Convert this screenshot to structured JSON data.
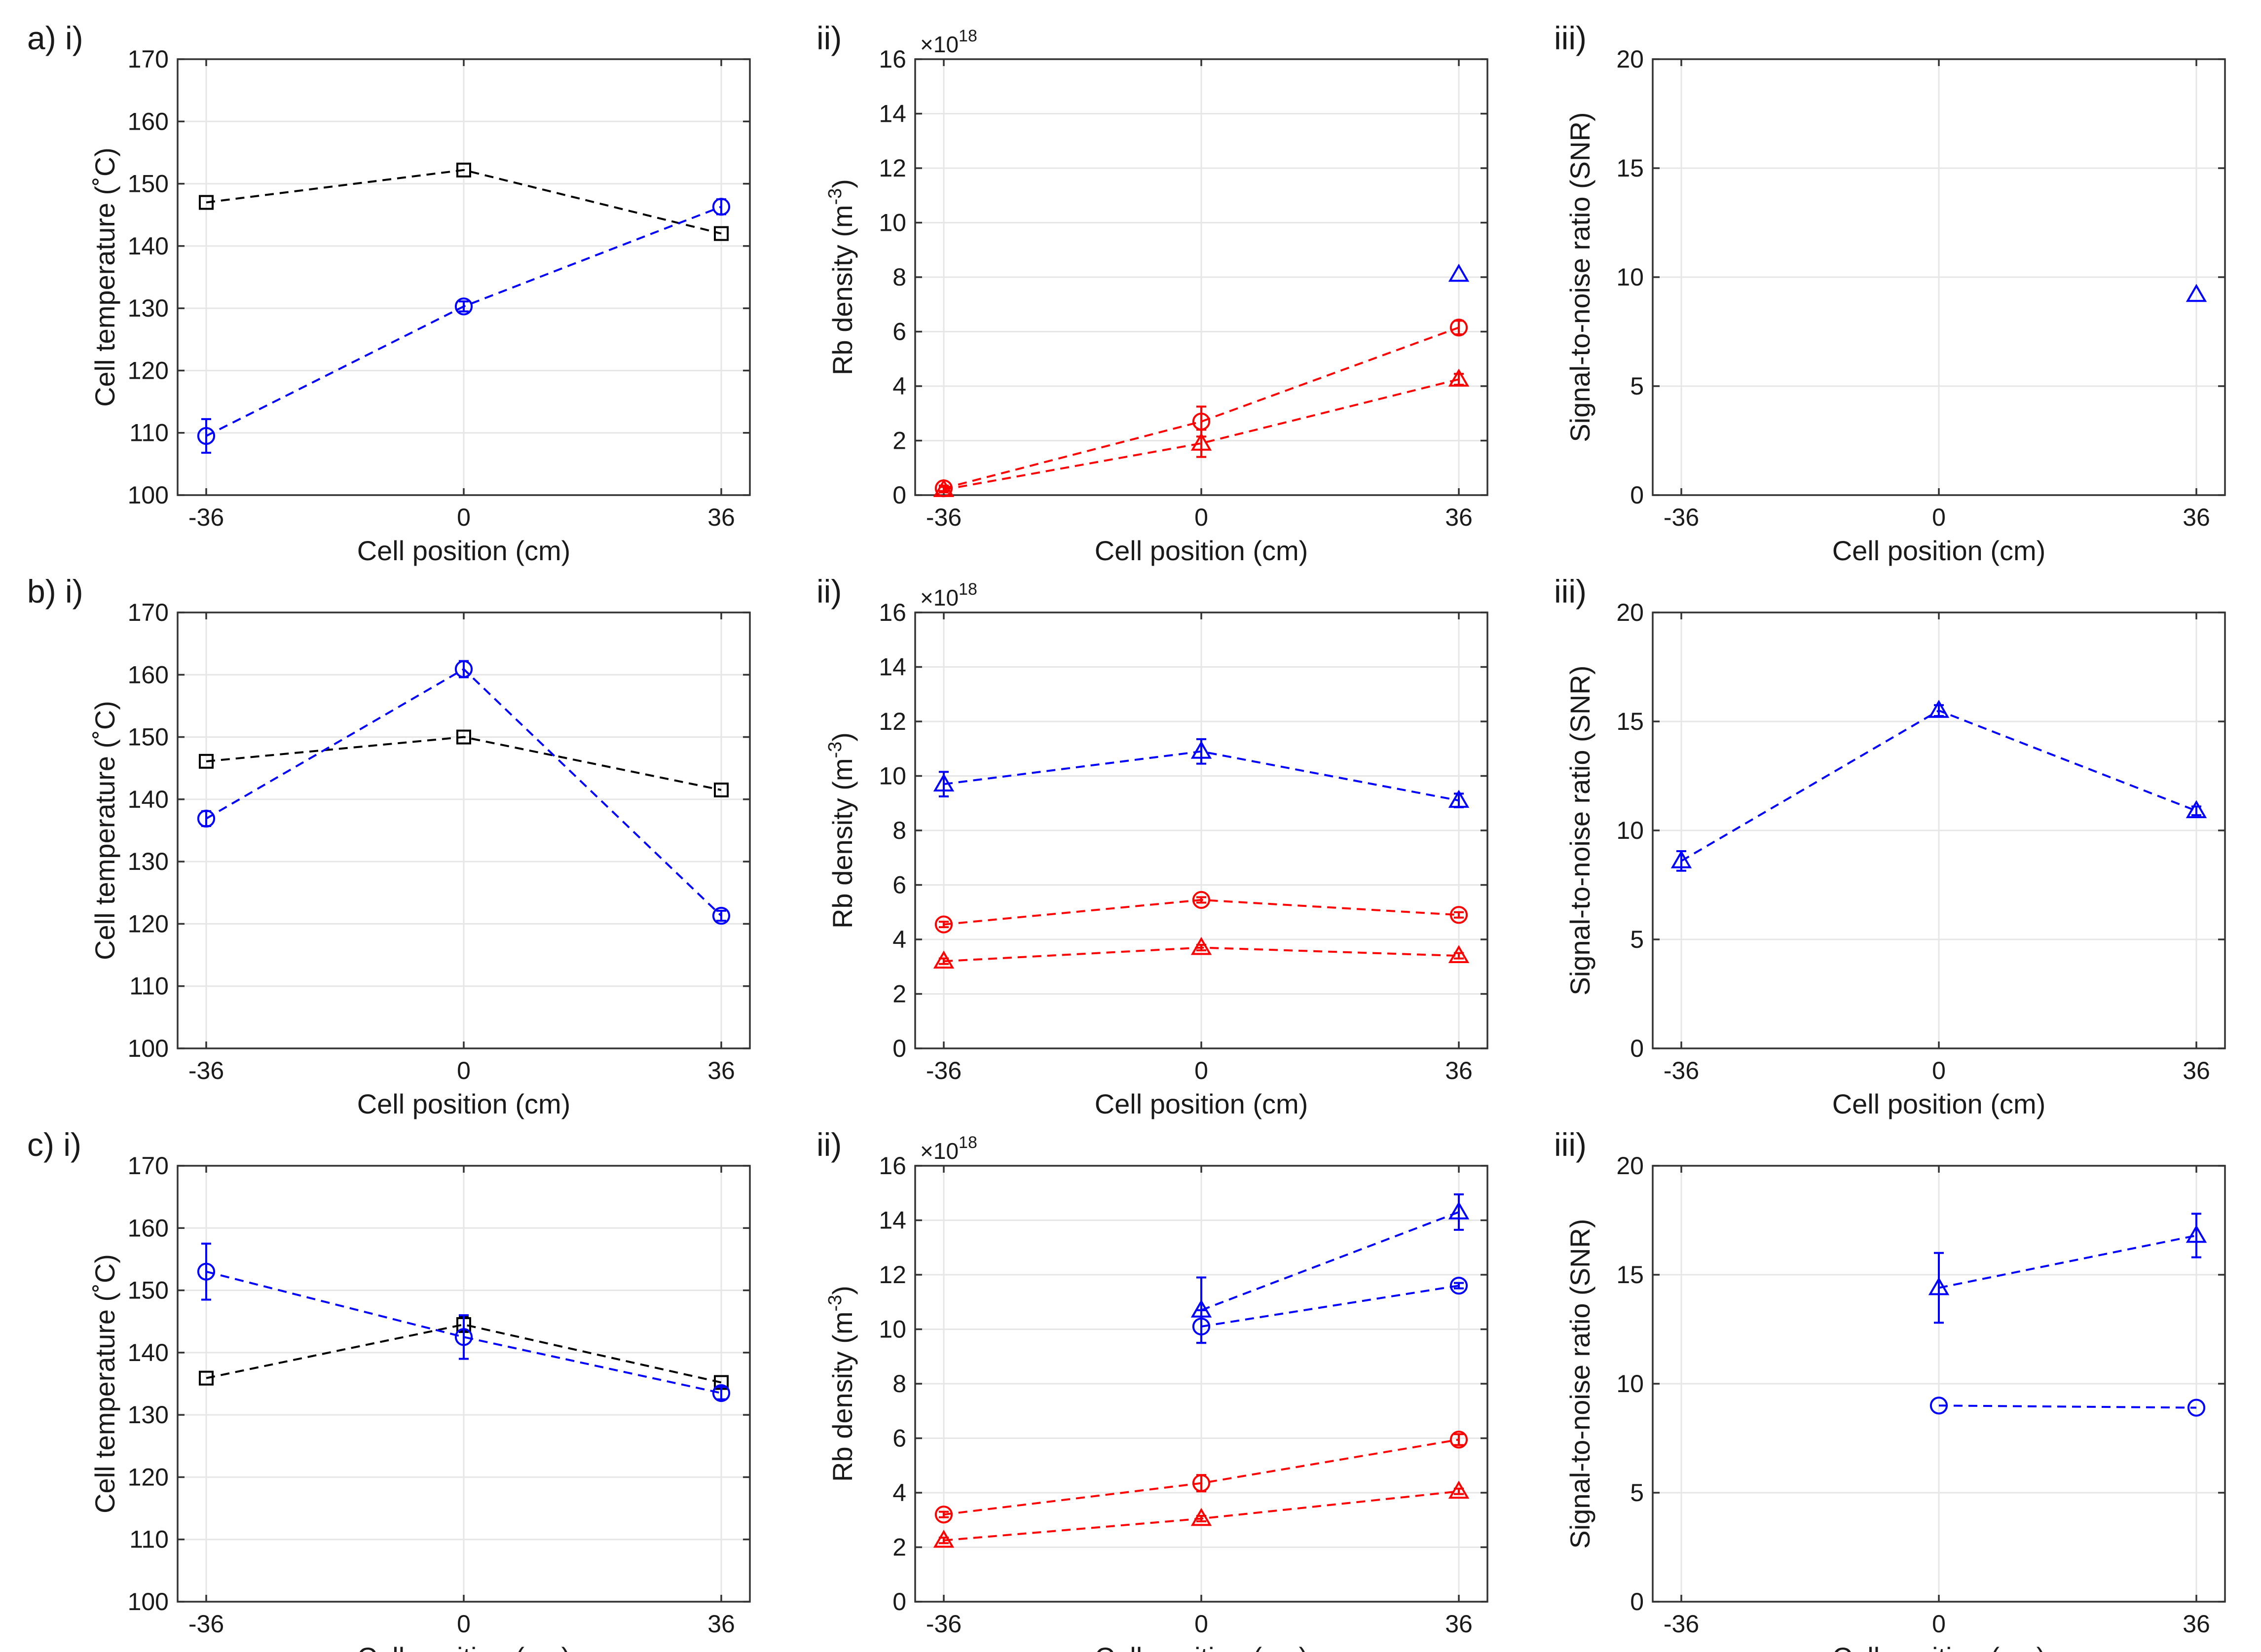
{
  "figure": {
    "colors": {
      "blue": "#0000ff",
      "red": "#ff0000",
      "black": "#000000"
    },
    "rows": [
      {
        "row_label": "a) i)",
        "panels": [
          {
            "panel_label": "",
            "type": "line",
            "xlabel": "Cell position (cm)",
            "ylabel": "Cell temperature (˚C)",
            "ylabel_sup": "",
            "multiplier_base": "",
            "multiplier_exp": "",
            "xticks": [
              -36,
              0,
              36
            ],
            "xlim": [
              -40,
              40
            ],
            "yticks": [
              100,
              110,
              120,
              130,
              140,
              150,
              160,
              170
            ],
            "ylim": [
              100,
              170
            ],
            "series": [
              {
                "name": "black-square",
                "color": "black",
                "marker": "square",
                "x": [
                  -36,
                  0,
                  36
                ],
                "y": [
                  147,
                  152.2,
                  142
                ],
                "err": [
                  0,
                  0,
                  0
                ]
              },
              {
                "name": "blue-circle",
                "color": "blue",
                "marker": "circle",
                "x": [
                  -36,
                  0,
                  36
                ],
                "y": [
                  109.5,
                  130.3,
                  146.3
                ],
                "err": [
                  2.7,
                  0.8,
                  1.2
                ]
              }
            ]
          },
          {
            "panel_label": "ii)",
            "type": "line",
            "xlabel": "Cell position (cm)",
            "ylabel": "Rb density (m",
            "ylabel_sup": "-3",
            "multiplier_base": "×10",
            "multiplier_exp": "18",
            "xticks": [
              -36,
              0,
              36
            ],
            "xlim": [
              -40,
              40
            ],
            "yticks": [
              0,
              2,
              4,
              6,
              8,
              10,
              12,
              14,
              16
            ],
            "ylim": [
              0,
              16
            ],
            "series": [
              {
                "name": "blue-triangle",
                "color": "blue",
                "marker": "triangle",
                "x": [
                  36
                ],
                "y": [
                  8.1
                ],
                "err": [
                  0
                ]
              },
              {
                "name": "red-circle",
                "color": "red",
                "marker": "circle",
                "x": [
                  -36,
                  0,
                  36
                ],
                "y": [
                  0.25,
                  2.7,
                  6.15
                ],
                "err": [
                  0.1,
                  0.55,
                  0.25
                ]
              },
              {
                "name": "red-triangle",
                "color": "red",
                "marker": "triangle",
                "x": [
                  -36,
                  0,
                  36
                ],
                "y": [
                  0.2,
                  1.9,
                  4.25
                ],
                "err": [
                  0.1,
                  0.5,
                  0.2
                ]
              }
            ]
          },
          {
            "panel_label": "iii)",
            "type": "line",
            "xlabel": "Cell position (cm)",
            "ylabel": "Signal-to-noise ratio (SNR)",
            "ylabel_sup": "",
            "multiplier_base": "",
            "multiplier_exp": "",
            "xticks": [
              -36,
              0,
              36
            ],
            "xlim": [
              -40,
              40
            ],
            "yticks": [
              0,
              5,
              10,
              15,
              20
            ],
            "ylim": [
              0,
              20
            ],
            "series": [
              {
                "name": "blue-triangle",
                "color": "blue",
                "marker": "triangle",
                "x": [
                  36
                ],
                "y": [
                  9.2
                ],
                "err": [
                  0
                ]
              }
            ]
          }
        ]
      },
      {
        "row_label": "b) i)",
        "panels": [
          {
            "panel_label": "",
            "type": "line",
            "xlabel": "Cell position (cm)",
            "ylabel": "Cell temperature (˚C)",
            "ylabel_sup": "",
            "multiplier_base": "",
            "multiplier_exp": "",
            "xticks": [
              -36,
              0,
              36
            ],
            "xlim": [
              -40,
              40
            ],
            "yticks": [
              100,
              110,
              120,
              130,
              140,
              150,
              160,
              170
            ],
            "ylim": [
              100,
              170
            ],
            "series": [
              {
                "name": "black-square",
                "color": "black",
                "marker": "square",
                "x": [
                  -36,
                  0,
                  36
                ],
                "y": [
                  146.1,
                  150,
                  141.5
                ],
                "err": [
                  0,
                  0,
                  0
                ]
              },
              {
                "name": "blue-circle",
                "color": "blue",
                "marker": "circle",
                "x": [
                  -36,
                  0,
                  36
                ],
                "y": [
                  136.9,
                  160.9,
                  121.3
                ],
                "err": [
                  1.2,
                  1.3,
                  0.8
                ]
              }
            ]
          },
          {
            "panel_label": "ii)",
            "type": "line",
            "xlabel": "Cell position (cm)",
            "ylabel": "Rb density (m",
            "ylabel_sup": "-3",
            "multiplier_base": "×10",
            "multiplier_exp": "18",
            "xticks": [
              -36,
              0,
              36
            ],
            "xlim": [
              -40,
              40
            ],
            "yticks": [
              0,
              2,
              4,
              6,
              8,
              10,
              12,
              14,
              16
            ],
            "ylim": [
              0,
              16
            ],
            "series": [
              {
                "name": "blue-triangle",
                "color": "blue",
                "marker": "triangle",
                "x": [
                  -36,
                  0,
                  36
                ],
                "y": [
                  9.7,
                  10.9,
                  9.1
                ],
                "err": [
                  0.45,
                  0.45,
                  0.25
                ]
              },
              {
                "name": "red-circle",
                "color": "red",
                "marker": "circle",
                "x": [
                  -36,
                  0,
                  36
                ],
                "y": [
                  4.55,
                  5.45,
                  4.9
                ],
                "err": [
                  0.1,
                  0.1,
                  0.1
                ]
              },
              {
                "name": "red-triangle",
                "color": "red",
                "marker": "triangle",
                "x": [
                  -36,
                  0,
                  36
                ],
                "y": [
                  3.2,
                  3.7,
                  3.4
                ],
                "err": [
                  0.1,
                  0.1,
                  0.1
                ]
              }
            ]
          },
          {
            "panel_label": "iii)",
            "type": "line",
            "xlabel": "Cell position (cm)",
            "ylabel": "Signal-to-noise ratio (SNR)",
            "ylabel_sup": "",
            "multiplier_base": "",
            "multiplier_exp": "",
            "xticks": [
              -36,
              0,
              36
            ],
            "xlim": [
              -40,
              40
            ],
            "yticks": [
              0,
              5,
              10,
              15,
              20
            ],
            "ylim": [
              0,
              20
            ],
            "series": [
              {
                "name": "blue-triangle",
                "color": "blue",
                "marker": "triangle",
                "x": [
                  -36,
                  0,
                  36
                ],
                "y": [
                  8.6,
                  15.5,
                  10.9
                ],
                "err": [
                  0.45,
                  0.25,
                  0.2
                ]
              }
            ]
          }
        ]
      },
      {
        "row_label": "c) i)",
        "panels": [
          {
            "panel_label": "",
            "type": "line",
            "xlabel": "Cell position (cm)",
            "ylabel": "Cell temperature (˚C)",
            "ylabel_sup": "",
            "multiplier_base": "",
            "multiplier_exp": "",
            "xticks": [
              -36,
              0,
              36
            ],
            "xlim": [
              -40,
              40
            ],
            "yticks": [
              100,
              110,
              120,
              130,
              140,
              150,
              160,
              170
            ],
            "ylim": [
              100,
              170
            ],
            "series": [
              {
                "name": "black-square",
                "color": "black",
                "marker": "square",
                "x": [
                  -36,
                  0,
                  36
                ],
                "y": [
                  135.9,
                  144.5,
                  135.2
                ],
                "err": [
                  0,
                  1.2,
                  0
                ]
              },
              {
                "name": "blue-circle",
                "color": "blue",
                "marker": "circle",
                "x": [
                  -36,
                  0,
                  36
                ],
                "y": [
                  153,
                  142.5,
                  133.5
                ],
                "err": [
                  4.5,
                  3.5,
                  1.0
                ]
              }
            ]
          },
          {
            "panel_label": "ii)",
            "type": "line",
            "xlabel": "Cell position (cm)",
            "ylabel": "Rb density (m",
            "ylabel_sup": "-3",
            "multiplier_base": "×10",
            "multiplier_exp": "18",
            "xticks": [
              -36,
              0,
              36
            ],
            "xlim": [
              -40,
              40
            ],
            "yticks": [
              0,
              2,
              4,
              6,
              8,
              10,
              12,
              14,
              16
            ],
            "ylim": [
              0,
              16
            ],
            "series": [
              {
                "name": "blue-triangle",
                "color": "blue",
                "marker": "triangle",
                "x": [
                  0,
                  36
                ],
                "y": [
                  10.7,
                  14.3
                ],
                "err": [
                  1.2,
                  0.65
                ]
              },
              {
                "name": "blue-circle",
                "color": "blue",
                "marker": "circle",
                "x": [
                  0,
                  36
                ],
                "y": [
                  10.1,
                  11.6
                ],
                "err": [
                  0.6,
                  0.1
                ]
              },
              {
                "name": "red-circle",
                "color": "red",
                "marker": "circle",
                "x": [
                  -36,
                  0,
                  36
                ],
                "y": [
                  3.2,
                  4.35,
                  5.95
                ],
                "err": [
                  0.1,
                  0.3,
                  0.2
                ]
              },
              {
                "name": "red-triangle",
                "color": "red",
                "marker": "triangle",
                "x": [
                  -36,
                  0,
                  36
                ],
                "y": [
                  2.25,
                  3.05,
                  4.05
                ],
                "err": [
                  0.1,
                  0.1,
                  0.1
                ]
              }
            ]
          },
          {
            "panel_label": "iii)",
            "type": "line",
            "xlabel": "Cell position (cm)",
            "ylabel": "Signal-to-noise ratio (SNR)",
            "ylabel_sup": "",
            "multiplier_base": "",
            "multiplier_exp": "",
            "xticks": [
              -36,
              0,
              36
            ],
            "xlim": [
              -40,
              40
            ],
            "yticks": [
              0,
              5,
              10,
              15,
              20
            ],
            "ylim": [
              0,
              20
            ],
            "series": [
              {
                "name": "blue-triangle",
                "color": "blue",
                "marker": "triangle",
                "x": [
                  0,
                  36
                ],
                "y": [
                  14.4,
                  16.8
                ],
                "err": [
                  1.6,
                  1.0
                ]
              },
              {
                "name": "blue-circle",
                "color": "blue",
                "marker": "circle",
                "x": [
                  0,
                  36
                ],
                "y": [
                  9.0,
                  8.9
                ],
                "err": [
                  0,
                  0
                ]
              }
            ]
          }
        ]
      }
    ]
  }
}
